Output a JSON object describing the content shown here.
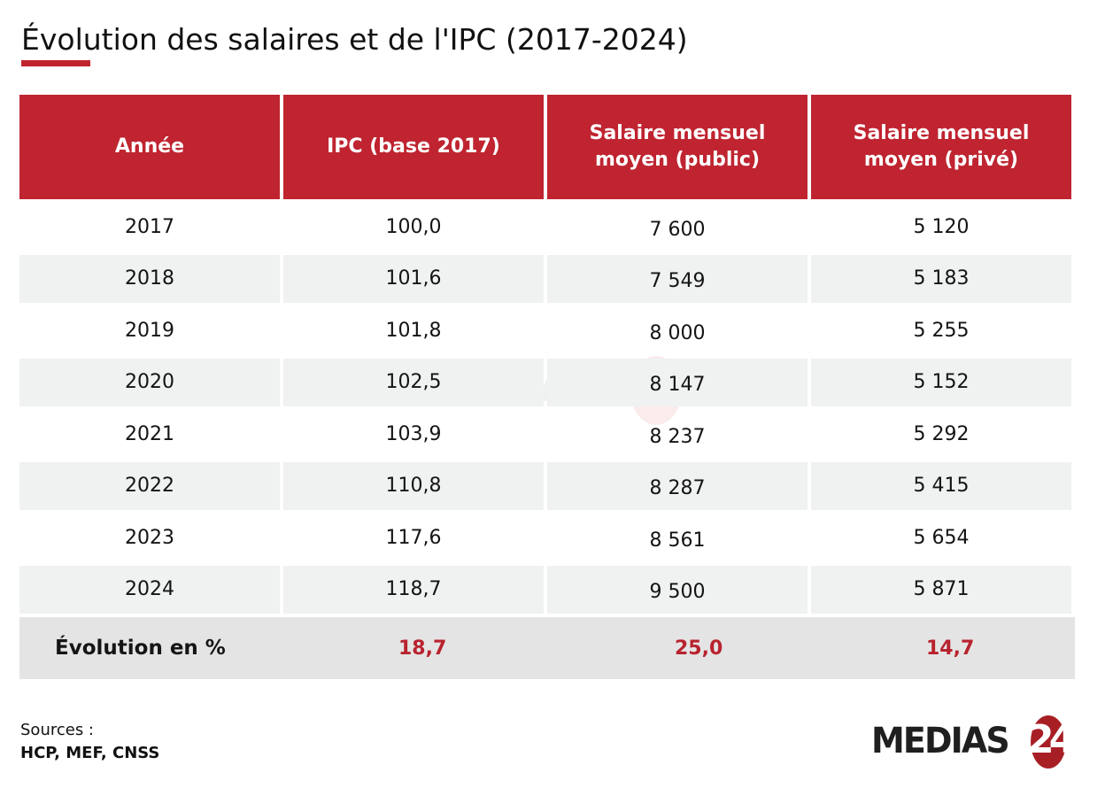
{
  "title": "Évolution des salaires et de l'IPC (2017-2024)",
  "accent_color": "#bf2430",
  "table": {
    "headers": [
      {
        "line1": "Année",
        "line2": ""
      },
      {
        "line1": "IPC (base 2017)",
        "line2": ""
      },
      {
        "line1": "Salaire mensuel",
        "line2": "moyen (public)"
      },
      {
        "line1": "Salaire mensuel",
        "line2": "moyen (privé)"
      }
    ],
    "rows": [
      {
        "year": "2017",
        "ipc": "100,0",
        "public": "7 600",
        "prive": "5 120"
      },
      {
        "year": "2018",
        "ipc": "101,6",
        "public": "7 549",
        "prive": "5 183"
      },
      {
        "year": "2019",
        "ipc": "101,8",
        "public": "8 000",
        "prive": "5 255"
      },
      {
        "year": "2020",
        "ipc": "102,5",
        "public": "8 147",
        "prive": "5 152"
      },
      {
        "year": "2021",
        "ipc": "103,9",
        "public": "8 237",
        "prive": "5 292"
      },
      {
        "year": "2022",
        "ipc": "110,8",
        "public": "8 287",
        "prive": "5 415"
      },
      {
        "year": "2023",
        "ipc": "117,6",
        "public": "8 561",
        "prive": "5 654"
      },
      {
        "year": "2024",
        "ipc": "118,7",
        "public": "9 500",
        "prive": "5 871"
      }
    ],
    "evolution": {
      "label": "Évolution en %",
      "ipc": "18,7",
      "public": "25,0",
      "prive": "14,7"
    }
  },
  "sources": {
    "label": "Sources :",
    "list": "HCP, MEF, CNSS"
  },
  "logo": {
    "text": "MEDIAS",
    "number": "24"
  },
  "watermark": {
    "text": "MEDIAS"
  }
}
